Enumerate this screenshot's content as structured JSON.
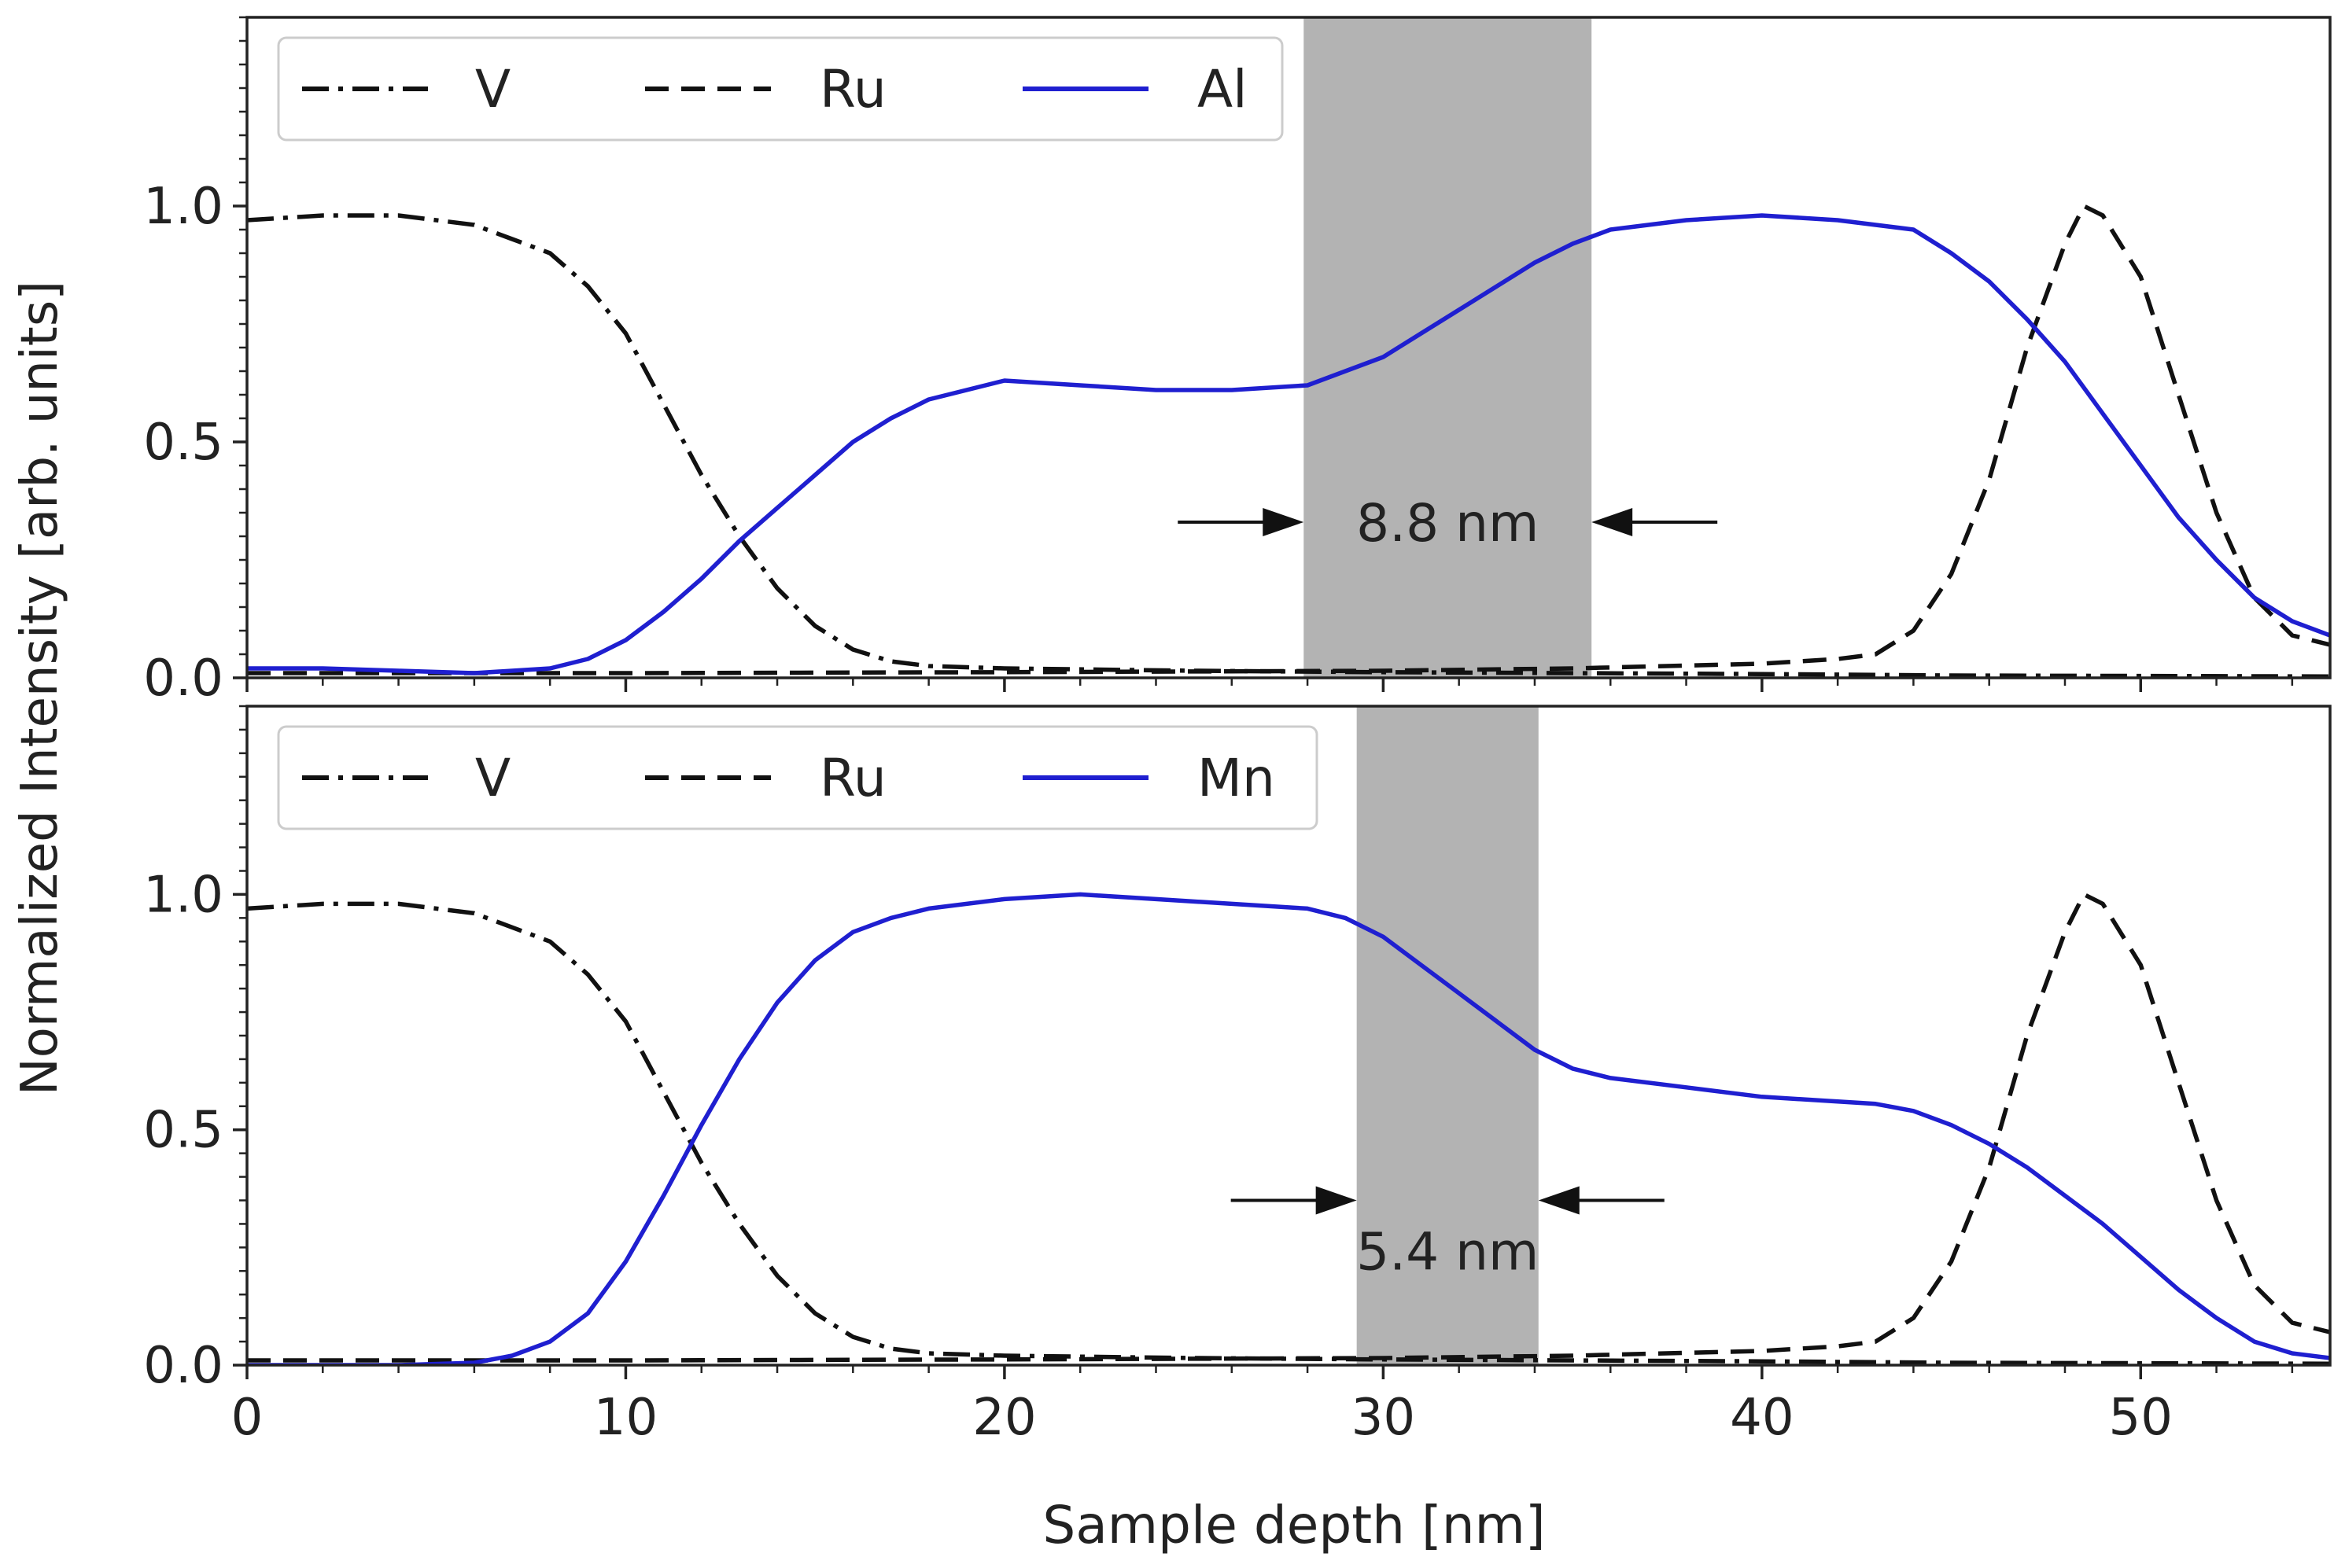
{
  "figure": {
    "ylabel": "Normalized Intensity [arb. units]",
    "xlabel": "Sample depth [nm]",
    "x_tick_labels": [
      "0",
      "10",
      "20",
      "30",
      "40",
      "50"
    ],
    "y_tick_labels": [
      "0.0",
      "0.5",
      "1.0"
    ]
  },
  "chart_data": [
    {
      "type": "line",
      "panel": "top",
      "xlim": [
        0,
        55
      ],
      "ylim": [
        0,
        1.4
      ],
      "xlabel": "Sample depth [nm]",
      "ylabel": "Normalized Intensity [arb. units]",
      "legend_location": "top-left",
      "shaded_region": {
        "x_start": 27.9,
        "x_end": 35.5,
        "color": "#b3b3b3"
      },
      "annotation": {
        "text": "8.8 nm",
        "y": 0.33
      },
      "series": [
        {
          "name": "V",
          "color": "#111111",
          "style": "dash-dot",
          "x": [
            0,
            2,
            4,
            6,
            7,
            8,
            9,
            10,
            11,
            12,
            13,
            14,
            15,
            16,
            17,
            18,
            20,
            25,
            30,
            35,
            40,
            45,
            50,
            55
          ],
          "y": [
            0.97,
            0.98,
            0.98,
            0.96,
            0.93,
            0.9,
            0.83,
            0.73,
            0.58,
            0.43,
            0.3,
            0.19,
            0.11,
            0.06,
            0.035,
            0.025,
            0.02,
            0.015,
            0.012,
            0.01,
            0.008,
            0.005,
            0.004,
            0.003
          ]
        },
        {
          "name": "Ru",
          "color": "#111111",
          "style": "dashed",
          "x": [
            0,
            5,
            10,
            20,
            30,
            35,
            40,
            42,
            43,
            44,
            45,
            46,
            47,
            48,
            48.5,
            49,
            50,
            51,
            52,
            53,
            54,
            55
          ],
          "y": [
            0.01,
            0.01,
            0.01,
            0.012,
            0.015,
            0.02,
            0.03,
            0.04,
            0.05,
            0.1,
            0.22,
            0.42,
            0.7,
            0.92,
            1.0,
            0.98,
            0.85,
            0.6,
            0.35,
            0.17,
            0.09,
            0.07
          ]
        },
        {
          "name": "Al",
          "color": "#1f1fd0",
          "style": "solid",
          "x": [
            0,
            2,
            4,
            6,
            8,
            9,
            10,
            11,
            12,
            13,
            14,
            15,
            16,
            17,
            18,
            20,
            22,
            24,
            26,
            28,
            29,
            30,
            31,
            32,
            33,
            34,
            35,
            36,
            38,
            40,
            42,
            44,
            45,
            46,
            47,
            48,
            49,
            50,
            51,
            52,
            53,
            54,
            55
          ],
          "y": [
            0.02,
            0.02,
            0.015,
            0.01,
            0.02,
            0.04,
            0.08,
            0.14,
            0.21,
            0.29,
            0.36,
            0.43,
            0.5,
            0.55,
            0.59,
            0.63,
            0.62,
            0.61,
            0.61,
            0.62,
            0.65,
            0.68,
            0.73,
            0.78,
            0.83,
            0.88,
            0.92,
            0.95,
            0.97,
            0.98,
            0.97,
            0.95,
            0.9,
            0.84,
            0.76,
            0.67,
            0.56,
            0.45,
            0.34,
            0.25,
            0.17,
            0.12,
            0.09
          ]
        }
      ]
    },
    {
      "type": "line",
      "panel": "bottom",
      "xlim": [
        0,
        55
      ],
      "ylim": [
        0,
        1.4
      ],
      "xlabel": "Sample depth [nm]",
      "ylabel": "Normalized Intensity [arb. units]",
      "legend_location": "top-left",
      "shaded_region": {
        "x_start": 29.3,
        "x_end": 34.1,
        "color": "#b3b3b3"
      },
      "annotation": {
        "text": "5.4 nm",
        "y": 0.35
      },
      "series": [
        {
          "name": "V",
          "color": "#111111",
          "style": "dash-dot",
          "x": [
            0,
            2,
            4,
            6,
            7,
            8,
            9,
            10,
            11,
            12,
            13,
            14,
            15,
            16,
            17,
            18,
            20,
            25,
            30,
            35,
            40,
            45,
            50,
            55
          ],
          "y": [
            0.97,
            0.98,
            0.98,
            0.96,
            0.93,
            0.9,
            0.83,
            0.73,
            0.58,
            0.43,
            0.3,
            0.19,
            0.11,
            0.06,
            0.035,
            0.025,
            0.02,
            0.015,
            0.012,
            0.01,
            0.008,
            0.005,
            0.004,
            0.003
          ]
        },
        {
          "name": "Ru",
          "color": "#111111",
          "style": "dashed",
          "x": [
            0,
            5,
            10,
            20,
            30,
            35,
            40,
            42,
            43,
            44,
            45,
            46,
            47,
            48,
            48.5,
            49,
            50,
            51,
            52,
            53,
            54,
            55
          ],
          "y": [
            0.01,
            0.01,
            0.01,
            0.012,
            0.015,
            0.02,
            0.03,
            0.04,
            0.05,
            0.1,
            0.22,
            0.42,
            0.7,
            0.92,
            1.0,
            0.98,
            0.85,
            0.6,
            0.35,
            0.17,
            0.09,
            0.07
          ]
        },
        {
          "name": "Mn",
          "color": "#1f1fd0",
          "style": "solid",
          "x": [
            0,
            4,
            6,
            7,
            8,
            9,
            10,
            11,
            12,
            13,
            14,
            15,
            16,
            17,
            18,
            20,
            22,
            24,
            26,
            28,
            29,
            30,
            31,
            32,
            33,
            34,
            35,
            36,
            38,
            40,
            42,
            43,
            44,
            45,
            46,
            47,
            48,
            49,
            50,
            51,
            52,
            53,
            54,
            55
          ],
          "y": [
            0.0,
            0.0,
            0.005,
            0.02,
            0.05,
            0.11,
            0.22,
            0.36,
            0.51,
            0.65,
            0.77,
            0.86,
            0.92,
            0.95,
            0.97,
            0.99,
            1.0,
            0.99,
            0.98,
            0.97,
            0.95,
            0.91,
            0.85,
            0.79,
            0.73,
            0.67,
            0.63,
            0.61,
            0.59,
            0.57,
            0.56,
            0.555,
            0.54,
            0.51,
            0.47,
            0.42,
            0.36,
            0.3,
            0.23,
            0.16,
            0.1,
            0.05,
            0.025,
            0.015
          ]
        }
      ]
    }
  ]
}
